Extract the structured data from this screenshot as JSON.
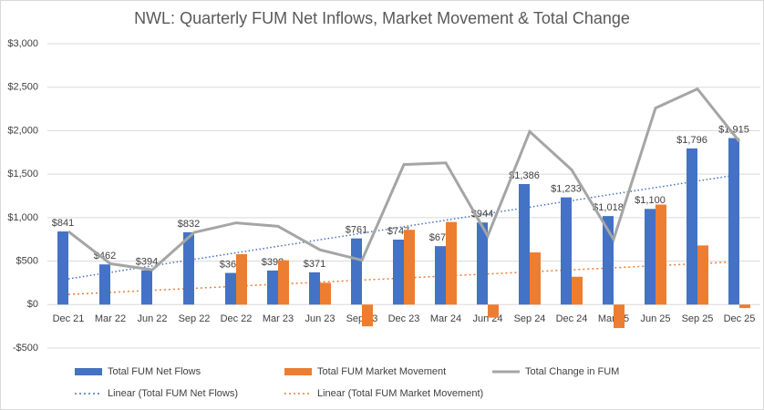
{
  "chart_data": {
    "type": "bar-line",
    "title": "NWL: Quarterly FUM Net Inflows, Market Movement & Total Change",
    "categories": [
      "Dec 21",
      "Mar 22",
      "Jun 22",
      "Sep 22",
      "Dec 22",
      "Mar 23",
      "Jun 23",
      "Sep 23",
      "Dec 23",
      "Mar 24",
      "Jun 24",
      "Sep 24",
      "Dec 24",
      "Mar 25",
      "Jun 25",
      "Sep 25",
      "Dec 25"
    ],
    "series": [
      {
        "name": "Total FUM Net Flows",
        "kind": "bar",
        "color": "#4472c4",
        "values": [
          841,
          462,
          394,
          832,
          364,
          392,
          371,
          761,
          747,
          672,
          944,
          1386,
          1233,
          1018,
          1100,
          1796,
          1915
        ],
        "value_labels": [
          "$841",
          "$462",
          "$394",
          "$832",
          "$364",
          "$392",
          "$371",
          "$761",
          "$747",
          "$672",
          "$944",
          "$1,386",
          "$1,233",
          "$1,018",
          "$1,100",
          "$1,796",
          "$1,915"
        ],
        "trendline": "Linear (Total FUM Net Flows)"
      },
      {
        "name": "Total FUM Market Movement",
        "kind": "bar",
        "color": "#ed7d31",
        "values": [
          0,
          0,
          0,
          0,
          580,
          510,
          250,
          -250,
          860,
          950,
          -150,
          600,
          320,
          -270,
          1150,
          680,
          -40
        ],
        "trendline": "Linear (Total FUM Market Movement)"
      },
      {
        "name": "Total Change in FUM",
        "kind": "line",
        "color": "#a5a5a5",
        "values": [
          841,
          470,
          400,
          830,
          940,
          900,
          630,
          510,
          1610,
          1630,
          790,
          1990,
          1550,
          750,
          2260,
          2480,
          1875
        ]
      }
    ],
    "ylim": [
      -500,
      3000
    ],
    "yticks": [
      {
        "value": -500,
        "label": "-$500"
      },
      {
        "value": 0,
        "label": "$0"
      },
      {
        "value": 500,
        "label": "$500"
      },
      {
        "value": 1000,
        "label": "$1,000"
      },
      {
        "value": 1500,
        "label": "$1,500"
      },
      {
        "value": 2000,
        "label": "$2,000"
      },
      {
        "value": 2500,
        "label": "$2,500"
      },
      {
        "value": 3000,
        "label": "$3,000"
      }
    ],
    "grid": true
  }
}
